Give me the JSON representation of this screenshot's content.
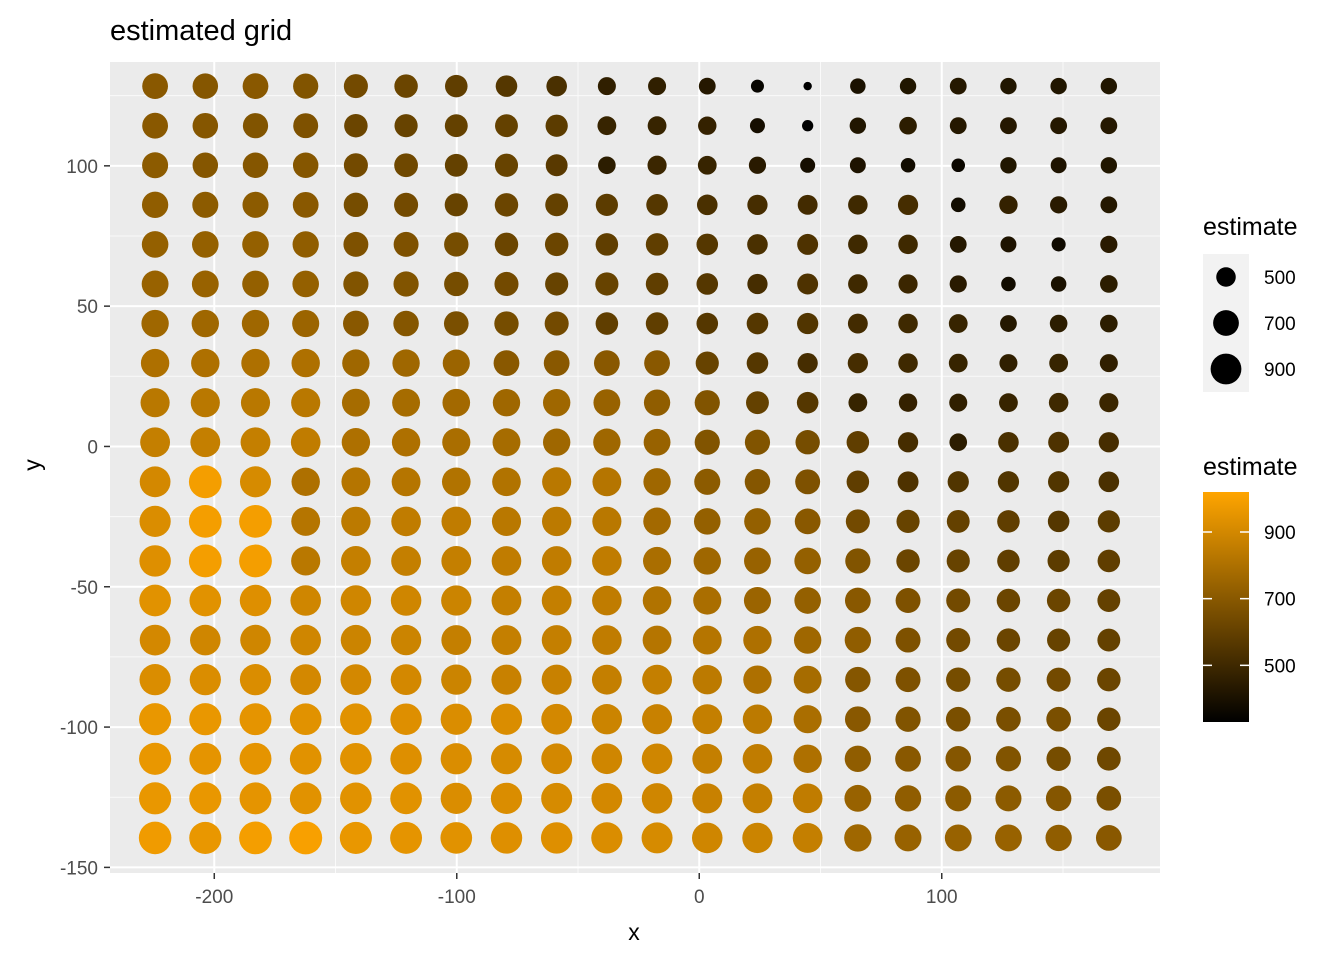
{
  "chart_data": {
    "type": "scatter",
    "title": "estimated grid",
    "xlabel": "x",
    "ylabel": "y",
    "xlim": [
      -243,
      190
    ],
    "ylim": [
      -152,
      137
    ],
    "x_ticks": [
      -200,
      -100,
      0,
      100
    ],
    "y_ticks": [
      -150,
      -100,
      -50,
      0,
      50,
      100
    ],
    "x_tick_labels": [
      "-200",
      "-100",
      "0",
      "100"
    ],
    "y_tick_labels": [
      "-150",
      "-100",
      "-50",
      "0",
      "50",
      "100"
    ],
    "grid": true,
    "panel_background": "#ebebeb",
    "x": [
      -224.4,
      -203.7,
      -183.0,
      -162.3,
      -141.6,
      -120.9,
      -100.2,
      -79.5,
      -58.8,
      -38.1,
      -17.4,
      3.3,
      24.0,
      44.7,
      65.4,
      86.1,
      106.8,
      127.5,
      148.2,
      168.9
    ],
    "y": [
      128.4,
      114.3,
      100.2,
      86.1,
      72.0,
      57.9,
      43.8,
      29.7,
      15.6,
      1.5,
      -12.6,
      -26.7,
      -40.8,
      -54.9,
      -69.0,
      -83.1,
      -97.2,
      -111.3,
      -125.4,
      -139.5
    ],
    "estimate_grid": [
      [
        700,
        690,
        700,
        680,
        640,
        620,
        590,
        560,
        530,
        460,
        460,
        430,
        350,
        280,
        400,
        420,
        430,
        420,
        420,
        420
      ],
      [
        700,
        690,
        680,
        670,
        620,
        610,
        600,
        600,
        580,
        480,
        480,
        470,
        390,
        320,
        420,
        450,
        430,
        430,
        430,
        430
      ],
      [
        710,
        690,
        690,
        690,
        640,
        630,
        600,
        610,
        570,
        450,
        490,
        480,
        440,
        390,
        410,
        380,
        360,
        420,
        410,
        420
      ],
      [
        720,
        710,
        710,
        700,
        650,
        640,
        610,
        620,
        600,
        580,
        560,
        530,
        520,
        510,
        500,
        520,
        380,
        470,
        440,
        430
      ],
      [
        730,
        730,
        730,
        720,
        670,
        670,
        650,
        620,
        620,
        590,
        590,
        560,
        530,
        540,
        500,
        500,
        430,
        410,
        370,
        440
      ],
      [
        740,
        740,
        730,
        730,
        680,
        680,
        650,
        640,
        610,
        610,
        590,
        560,
        520,
        540,
        500,
        490,
        440,
        380,
        400,
        450
      ],
      [
        760,
        760,
        760,
        750,
        700,
        690,
        660,
        650,
        640,
        590,
        590,
        560,
        560,
        550,
        510,
        500,
        480,
        430,
        450,
        450
      ],
      [
        800,
        800,
        800,
        800,
        760,
        760,
        750,
        700,
        700,
        700,
        700,
        610,
        560,
        520,
        520,
        500,
        480,
        460,
        480,
        460
      ],
      [
        830,
        830,
        830,
        830,
        780,
        780,
        770,
        760,
        760,
        740,
        720,
        680,
        600,
        560,
        480,
        470,
        460,
        480,
        500,
        490
      ],
      [
        860,
        860,
        860,
        850,
        800,
        800,
        790,
        780,
        760,
        760,
        740,
        680,
        680,
        650,
        590,
        520,
        450,
        530,
        540,
        520
      ],
      [
        900,
        990,
        910,
        800,
        820,
        820,
        810,
        810,
        830,
        820,
        760,
        710,
        690,
        670,
        590,
        540,
        550,
        550,
        550,
        530
      ],
      [
        920,
        990,
        990,
        820,
        840,
        850,
        850,
        830,
        840,
        830,
        770,
        730,
        730,
        700,
        640,
        610,
        600,
        590,
        560,
        580
      ],
      [
        930,
        990,
        990,
        830,
        860,
        860,
        860,
        850,
        850,
        850,
        790,
        760,
        740,
        730,
        680,
        620,
        610,
        590,
        580,
        590
      ],
      [
        940,
        940,
        930,
        890,
        890,
        890,
        880,
        860,
        860,
        850,
        810,
        790,
        750,
        730,
        700,
        670,
        640,
        620,
        620,
        600
      ],
      [
        900,
        890,
        890,
        890,
        880,
        880,
        860,
        860,
        860,
        850,
        820,
        820,
        800,
        760,
        720,
        670,
        640,
        620,
        610,
        600
      ],
      [
        920,
        920,
        920,
        900,
        900,
        900,
        880,
        870,
        870,
        860,
        860,
        840,
        800,
        780,
        690,
        670,
        650,
        650,
        640,
        620
      ],
      [
        960,
        960,
        950,
        940,
        940,
        930,
        920,
        920,
        900,
        880,
        870,
        860,
        840,
        790,
        700,
        680,
        660,
        660,
        660,
        620
      ],
      [
        960,
        950,
        950,
        940,
        940,
        930,
        920,
        910,
        900,
        890,
        890,
        860,
        850,
        800,
        720,
        700,
        690,
        680,
        650,
        630
      ],
      [
        960,
        960,
        950,
        940,
        940,
        940,
        920,
        920,
        910,
        900,
        890,
        870,
        860,
        850,
        740,
        720,
        710,
        710,
        690,
        660
      ],
      [
        980,
        960,
        990,
        1000,
        960,
        950,
        940,
        930,
        930,
        920,
        910,
        890,
        880,
        860,
        760,
        740,
        740,
        740,
        720,
        700
      ]
    ],
    "legends": [
      {
        "type": "size",
        "title": "estimate",
        "breaks": [
          500,
          700,
          900
        ],
        "labels": [
          "500",
          "700",
          "900"
        ]
      },
      {
        "type": "color",
        "title": "estimate",
        "breaks": [
          500,
          700,
          900
        ],
        "labels": [
          "500",
          "700",
          "900"
        ],
        "range": [
          330,
          1020
        ],
        "low_color": "#000000",
        "high_color": "#ffa500"
      }
    ]
  }
}
